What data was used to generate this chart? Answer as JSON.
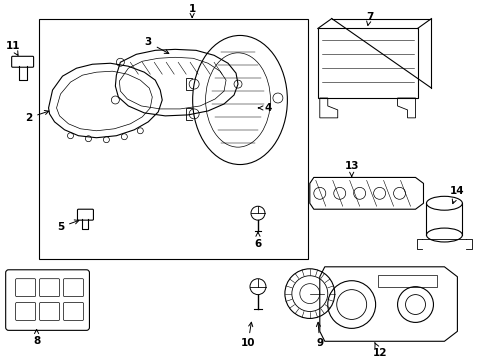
{
  "background_color": "#ffffff",
  "line_color": "#000000",
  "fig_width": 4.9,
  "fig_height": 3.6,
  "dpi": 100,
  "fs": 7.5
}
